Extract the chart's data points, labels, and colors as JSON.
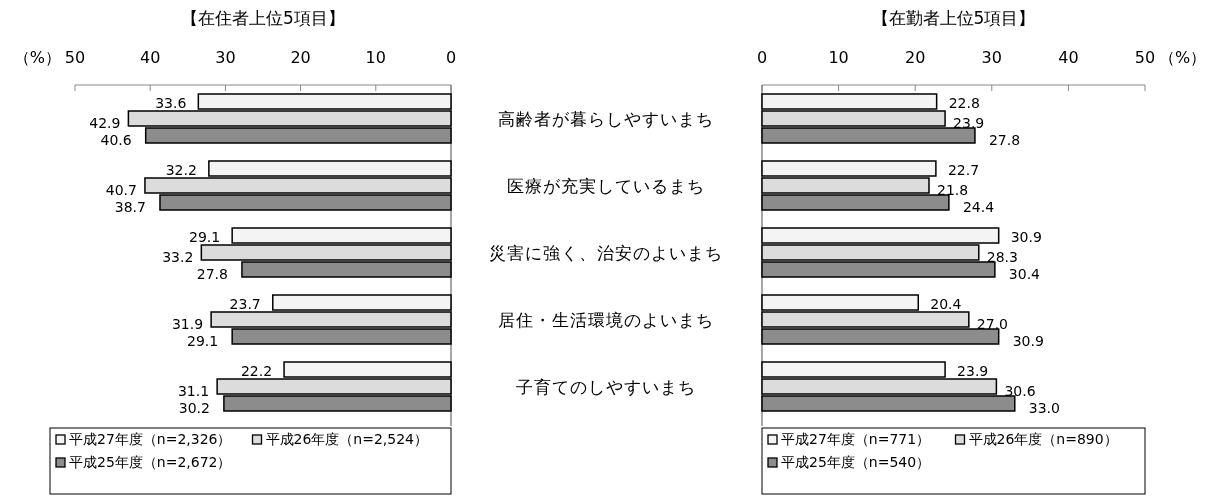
{
  "chart_data": [
    {
      "type": "bar",
      "orientation": "horizontal",
      "title": "【在住者上位5項目】",
      "xlabel": "（%）",
      "categories": [
        "高齢者が暮らしやすいまち",
        "医療が充実しているまち",
        "災害に強く、治安のよいまち",
        "居住・生活環境のよいまち",
        "子育てのしやすいまち"
      ],
      "xlim": [
        50,
        0
      ],
      "xticks": [
        50,
        40,
        30,
        20,
        10,
        0
      ],
      "data_labels": true,
      "legend": "bottom",
      "series": [
        {
          "name": "平成27年度（n=2,326）",
          "color": "#f4f4f4",
          "values": [
            33.6,
            32.2,
            29.1,
            23.7,
            22.2
          ]
        },
        {
          "name": "平成26年度（n=2,524）",
          "color": "#dcdcdc",
          "values": [
            42.9,
            40.7,
            33.2,
            31.9,
            31.1
          ]
        },
        {
          "name": "平成25年度（n=2,672）",
          "color": "#8c8c8c",
          "values": [
            40.6,
            38.7,
            27.8,
            29.1,
            30.2
          ]
        }
      ]
    },
    {
      "type": "bar",
      "orientation": "horizontal",
      "title": "【在勤者上位5項目】",
      "xlabel": "（%）",
      "categories": [
        null,
        null,
        null,
        null,
        null
      ],
      "xlim": [
        0,
        50
      ],
      "xticks": [
        0,
        10,
        20,
        30,
        40,
        50
      ],
      "legend": "bottom",
      "series": [
        {
          "name": "平成27年度（n=771）",
          "color": "#f4f4f4",
          "values": [
            22.8,
            22.7,
            30.9,
            20.4,
            23.9
          ],
          "value_labels": [
            "22.8",
            "22.7",
            "30.9",
            "20.4",
            "23.9"
          ]
        },
        {
          "name": "平成26年度（n=890）",
          "color": "#dcdcdc",
          "values": [
            23.9,
            21.8,
            28.3,
            27.0,
            30.6
          ],
          "value_labels": [
            "23.9",
            "21.8",
            "28.3",
            "27.0",
            "30.6"
          ]
        },
        {
          "name": "平成25年度（n=540）",
          "color": "#8c8c8c",
          "values": [
            27.8,
            24.4,
            30.4,
            30.9,
            33.0
          ],
          "value_labels": [
            "27.8",
            "24.4",
            "30.4",
            "30.9",
            "33.0"
          ]
        }
      ]
    }
  ]
}
